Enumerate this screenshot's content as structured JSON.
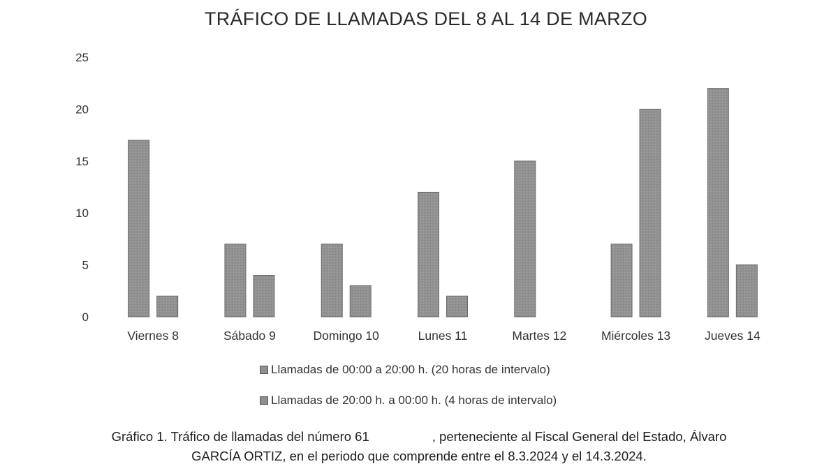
{
  "chart_data": {
    "type": "bar",
    "title": "TRÁFICO DE LLAMADAS DEL 8 AL 14 DE MARZO",
    "categories": [
      "Viernes 8",
      "Sábado 9",
      "Domingo 10",
      "Lunes 11",
      "Martes 12",
      "Miércoles 13",
      "Jueves 14"
    ],
    "series": [
      {
        "name": "Llamadas de 00:00 a 20:00 h. (20 horas de intervalo)",
        "values": [
          17,
          7,
          7,
          12,
          15,
          7,
          22
        ],
        "color": "#8f8f8f"
      },
      {
        "name": "Llamadas de 20:00 h. a 00:00 h. (4 horas de intervalo)",
        "values": [
          2,
          4,
          3,
          2,
          0,
          20,
          5
        ],
        "color": "#8f8f8f"
      }
    ],
    "ylim": [
      0,
      25
    ],
    "yticks": [
      "0",
      "5",
      "10",
      "15",
      "20",
      "25"
    ],
    "grid": false,
    "legend_position": "bottom"
  },
  "caption": {
    "line1_a": "Gráfico 1. Tráfico de llamadas del número 61",
    "line1_b": ", perteneciente al Fiscal General del Estado, Álvaro",
    "line2": "GARCÍA ORTIZ, en el periodo que comprende entre el 8.3.2024 y el 14.3.2024."
  }
}
